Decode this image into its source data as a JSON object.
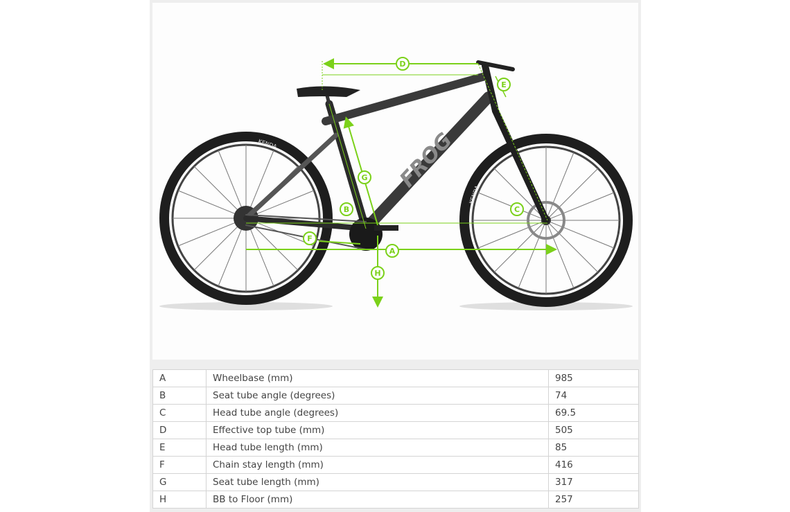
{
  "diagram": {
    "brand_text": "FROG",
    "tyre_text": "KENDA",
    "accent_color": "#7bd11a",
    "markers": [
      "A",
      "B",
      "C",
      "D",
      "E",
      "F",
      "G",
      "H"
    ]
  },
  "geometry_table": {
    "rows": [
      {
        "key": "A",
        "label": "Wheelbase (mm)",
        "value": "985"
      },
      {
        "key": "B",
        "label": "Seat tube angle (degrees)",
        "value": "74"
      },
      {
        "key": "C",
        "label": "Head tube angle (degrees)",
        "value": "69.5"
      },
      {
        "key": "D",
        "label": "Effective top tube (mm)",
        "value": "505"
      },
      {
        "key": "E",
        "label": "Head tube length (mm)",
        "value": "85"
      },
      {
        "key": "F",
        "label": "Chain stay length (mm)",
        "value": "416"
      },
      {
        "key": "G",
        "label": "Seat tube length (mm)",
        "value": "317"
      },
      {
        "key": "H",
        "label": "BB to Floor (mm)",
        "value": "257"
      }
    ]
  }
}
